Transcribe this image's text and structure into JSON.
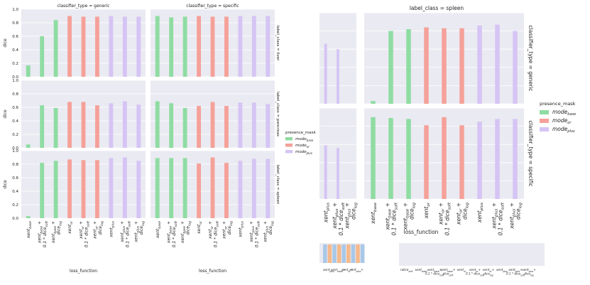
{
  "colors": {
    "base": "#8fdca2",
    "or": "#f5a199",
    "plus": "#d5c4f4",
    "panel_bg": "#eaeaf2",
    "grid": "#ffffff",
    "strip_blue": "#a9c8e8",
    "strip_orange": "#f5b98c"
  },
  "legend": {
    "title": "presence_mask",
    "entries": [
      {
        "key": "base",
        "base_text": "mode",
        "sub": "base"
      },
      {
        "key": "or",
        "base_text": "mode",
        "sub": "or"
      },
      {
        "key": "plus",
        "base_text": "mode",
        "sub": "plus"
      }
    ]
  },
  "x_categories": [
    {
      "key": "xent_base",
      "lines": [
        [
          "xent",
          "base",
          " "
        ]
      ]
    },
    {
      "key": "xent_base_soft",
      "lines": [
        [
          "xent",
          "base",
          " +"
        ],
        [
          "0.1 * dice",
          "soft",
          ""
        ]
      ]
    },
    {
      "key": "xent_base_log",
      "lines": [
        [
          "xent",
          "base",
          " +"
        ],
        [
          "dice",
          "log",
          ""
        ]
      ]
    },
    {
      "key": "xent_or",
      "lines": [
        [
          "xent",
          "or",
          " "
        ]
      ]
    },
    {
      "key": "xent_or_soft",
      "lines": [
        [
          "xent",
          "or",
          " +"
        ],
        [
          "0.1 * dice",
          "soft",
          ""
        ]
      ]
    },
    {
      "key": "xent_or_log",
      "lines": [
        [
          "xent",
          "or",
          " +"
        ],
        [
          "dice",
          "log",
          ""
        ]
      ]
    },
    {
      "key": "xent_plus",
      "lines": [
        [
          "xent",
          "plus",
          " "
        ]
      ]
    },
    {
      "key": "xent_plus_soft",
      "lines": [
        [
          "xent",
          "plus",
          " +"
        ],
        [
          "0.1 * dice",
          "soft",
          ""
        ]
      ]
    },
    {
      "key": "xent_plus_log",
      "lines": [
        [
          "xent",
          "plus",
          " +"
        ],
        [
          "dice",
          "log",
          ""
        ]
      ]
    }
  ],
  "chart_data": [
    {
      "type": "bar",
      "name": "left-grid",
      "col_labels": [
        "classifier_type = generic",
        "classifier_type = specific"
      ],
      "row_labels": [
        "label_class = liver",
        "label_class = pancreas",
        "label_class = spleen"
      ],
      "ylabel": "dice",
      "xlabel": "loss_function",
      "ylim": [
        0,
        1.0
      ],
      "yticks": [
        "0.0",
        "0.2",
        "0.4",
        "0.6",
        "0.8",
        "1.0"
      ],
      "grid": true,
      "legend_position": "right",
      "categories": [
        "xent_base",
        "xent_base_soft",
        "xent_base_log",
        "xent_or",
        "xent_or_soft",
        "xent_or_log",
        "xent_plus",
        "xent_plus_soft",
        "xent_plus_log"
      ],
      "category_modes": [
        "base",
        "base",
        "base",
        "or",
        "or",
        "or",
        "plus",
        "plus",
        "plus"
      ],
      "panels": [
        {
          "row": 0,
          "col": 0,
          "values": [
            0.17,
            0.6,
            0.84,
            0.9,
            0.89,
            0.89,
            0.9,
            0.89,
            0.89
          ]
        },
        {
          "row": 0,
          "col": 1,
          "values": [
            0.9,
            0.88,
            0.89,
            0.9,
            0.89,
            0.89,
            0.9,
            0.9,
            0.9
          ]
        },
        {
          "row": 1,
          "col": 0,
          "values": [
            0.05,
            0.63,
            0.59,
            0.68,
            0.68,
            0.63,
            0.66,
            0.69,
            0.64
          ]
        },
        {
          "row": 1,
          "col": 1,
          "values": [
            0.69,
            0.66,
            0.59,
            0.62,
            0.68,
            0.62,
            0.67,
            0.67,
            0.65
          ]
        },
        {
          "row": 2,
          "col": 0,
          "values": [
            0.03,
            0.82,
            0.85,
            0.87,
            0.86,
            0.86,
            0.89,
            0.9,
            0.85
          ]
        },
        {
          "row": 2,
          "col": 1,
          "values": [
            0.89,
            0.89,
            0.89,
            0.81,
            0.9,
            0.82,
            0.85,
            0.88,
            0.88
          ]
        }
      ]
    },
    {
      "type": "bar",
      "name": "right-grid",
      "title": "label_class = spleen",
      "row_labels": [
        "classifier_type = generic",
        "classifier_type = specific"
      ],
      "xlabel": "loss_function",
      "ylim": [
        0,
        1.0
      ],
      "grid": true,
      "legend_position": "right",
      "small_categories": [
        "xent_plus",
        "xent_plus_soft",
        "xent_plus_log"
      ],
      "categories": [
        "xent_base",
        "xent_base_soft",
        "xent_base_log",
        "xent_or",
        "xent_or_soft",
        "xent_or_log",
        "xent_plus",
        "xent_plus_soft",
        "xent_plus_log"
      ],
      "category_modes": [
        "base",
        "base",
        "base",
        "or",
        "or",
        "or",
        "plus",
        "plus",
        "plus"
      ],
      "panels": [
        {
          "row": 0,
          "part": "small",
          "values": [
            0.66,
            0.6,
            0.0
          ]
        },
        {
          "row": 0,
          "part": "large",
          "values": [
            0.03,
            0.8,
            0.82,
            0.84,
            0.83,
            0.83,
            0.86,
            0.87,
            0.8
          ]
        },
        {
          "row": 1,
          "part": "small",
          "values": [
            0.59,
            0.56,
            0.0
          ]
        },
        {
          "row": 1,
          "part": "large",
          "values": [
            0.9,
            0.89,
            0.88,
            0.81,
            0.9,
            0.81,
            0.85,
            0.88,
            0.88
          ]
        }
      ]
    }
  ],
  "bottom_strip": {
    "first_label": "n",
    "labels": [
      [
        [
          "dice",
          "soft",
          ""
        ]
      ],
      [
        [
          "xent",
          "base",
          ""
        ]
      ],
      [
        [
          "xent",
          "base",
          "+"
        ],
        [
          "0.1 * dice",
          "soft",
          ""
        ]
      ],
      [
        [
          "xent",
          "base",
          "+"
        ],
        [
          "dice",
          "soft",
          ""
        ]
      ],
      [
        [
          "xent",
          "or",
          ""
        ]
      ],
      [
        [
          "xent",
          "or",
          "+"
        ],
        [
          "0.1 * dice",
          "soft",
          ""
        ]
      ],
      [
        [
          "xent",
          "or",
          "+"
        ],
        [
          "dice",
          "log",
          ""
        ]
      ],
      [
        [
          "xent",
          "plus",
          ""
        ]
      ],
      [
        [
          "xent",
          "plus",
          "+"
        ],
        [
          "0.1 * dice",
          "soft",
          ""
        ]
      ],
      [
        [
          "xent",
          "plus",
          "+"
        ],
        [
          "dice",
          "log",
          ""
        ]
      ]
    ]
  }
}
